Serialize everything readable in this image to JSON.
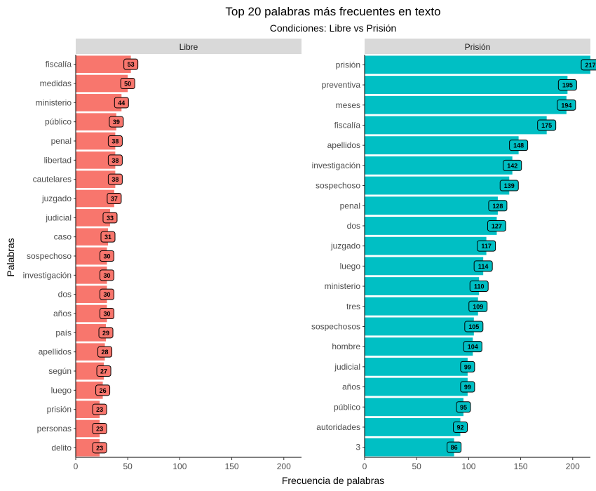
{
  "chart_data": {
    "type": "bar",
    "orientation": "horizontal",
    "title": "Top 20 palabras más frecuentes en texto",
    "subtitle": "Condiciones: Libre vs Prisión",
    "xlabel": "Frecuencia de palabras",
    "ylabel": "Palabras",
    "xlim": [
      0,
      217
    ],
    "xticks": [
      0,
      50,
      100,
      150,
      200
    ],
    "grid": false,
    "legend": "none",
    "panels": [
      {
        "name": "Libre",
        "color": "#F8766D",
        "categories": [
          "fiscalía",
          "medidas",
          "ministerio",
          "público",
          "penal",
          "libertad",
          "cautelares",
          "juzgado",
          "judicial",
          "caso",
          "sospechoso",
          "investigación",
          "dos",
          "años",
          "país",
          "apellidos",
          "según",
          "luego",
          "prisión",
          "personas",
          "delito"
        ],
        "values": [
          53,
          50,
          44,
          39,
          38,
          38,
          38,
          37,
          33,
          31,
          30,
          30,
          30,
          30,
          29,
          28,
          27,
          26,
          23,
          23,
          23
        ]
      },
      {
        "name": "Prisión",
        "color": "#00BFC4",
        "categories": [
          "prisión",
          "preventiva",
          "meses",
          "fiscalía",
          "apellidos",
          "investigación",
          "sospechoso",
          "penal",
          "dos",
          "juzgado",
          "luego",
          "ministerio",
          "tres",
          "sospechosos",
          "hombre",
          "judicial",
          "años",
          "público",
          "autoridades",
          "3"
        ],
        "values": [
          217,
          195,
          194,
          175,
          148,
          142,
          139,
          128,
          127,
          117,
          114,
          110,
          109,
          105,
          104,
          99,
          99,
          95,
          92,
          86
        ]
      }
    ]
  }
}
